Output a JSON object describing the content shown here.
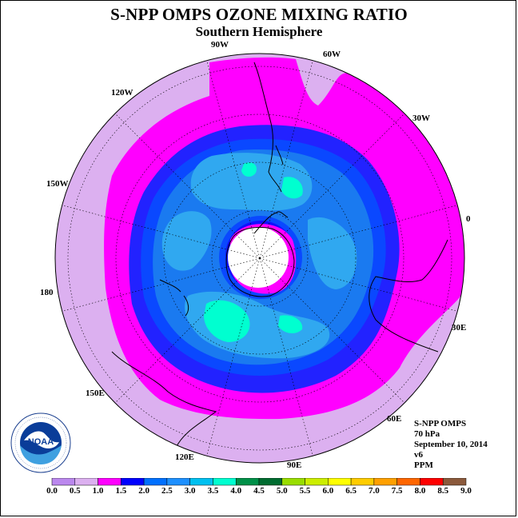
{
  "title": "S-NPP OMPS OZONE MIXING RATIO",
  "subtitle": "Southern Hemisphere",
  "longitude_labels": [
    "90W",
    "60W",
    "30W",
    "0",
    "30E",
    "60E",
    "90E",
    "120E",
    "150E",
    "180",
    "150W",
    "120W"
  ],
  "info": {
    "instrument": "S-NPP OMPS",
    "level": "70 hPa",
    "date": "September 10, 2014",
    "version": "v6",
    "units": "PPM"
  },
  "logo_text": "NOAA",
  "colorbar": {
    "labels": [
      "0.0",
      "0.5",
      "1.0",
      "1.5",
      "2.0",
      "2.5",
      "3.0",
      "3.5",
      "4.0",
      "4.5",
      "5.0",
      "5.5",
      "6.0",
      "6.5",
      "7.0",
      "7.5",
      "8.0",
      "8.5",
      "9.0"
    ],
    "colors": [
      "#bb88ee",
      "#dcb0f0",
      "#ff00ff",
      "#ff00ff",
      "#0000ff",
      "#0070ff",
      "#1e90ff",
      "#00c0f0",
      "#00ffd0",
      "#009048",
      "#006c30",
      "#99dd00",
      "#ccee00",
      "#ffff00",
      "#ffcc00",
      "#ffa000",
      "#ff6600",
      "#ff0000",
      "#8b5a3c"
    ]
  },
  "map_colors": {
    "outer": "#dcb0f0",
    "band_1_0": "#ff00ff",
    "band_1_5": "#3030ff",
    "band_2_0": "#1040ff",
    "band_2_5": "#1a7af0",
    "band_3_0": "#30a8f0",
    "band_3_5": "#00ffd0",
    "hole": "#ffffff"
  }
}
